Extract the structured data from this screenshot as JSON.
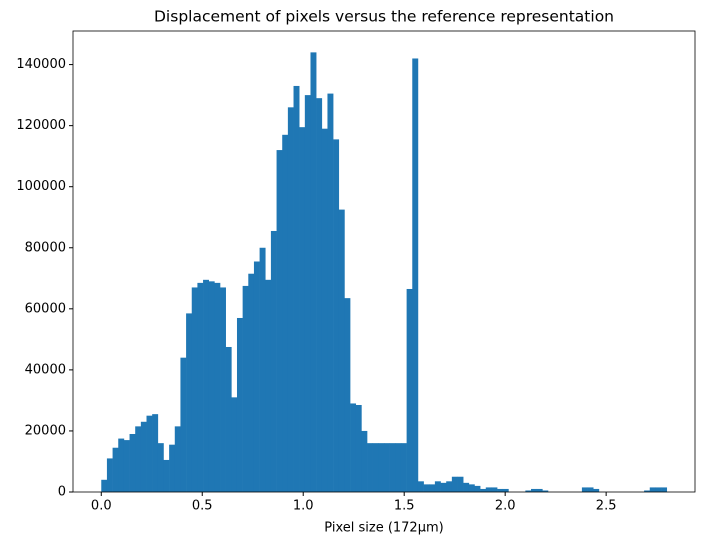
{
  "chart_data": {
    "type": "histogram",
    "title": "Displacement of pixels versus the reference representation",
    "xlabel": "Pixel size (172µm)",
    "color": "#1f77b4",
    "bins": [
      0,
      0.028,
      0.056,
      0.084,
      0.112,
      0.14,
      0.168,
      0.196,
      0.224,
      0.252,
      0.28,
      0.308,
      0.336,
      0.364,
      0.392,
      0.42,
      0.448,
      0.476,
      0.504,
      0.532,
      0.56,
      0.588,
      0.616,
      0.644,
      0.672,
      0.7,
      0.728,
      0.756,
      0.784,
      0.812,
      0.84,
      0.868,
      0.896,
      0.924,
      0.952,
      0.98,
      1.008,
      1.036,
      1.064,
      1.092,
      1.12,
      1.148,
      1.176,
      1.204,
      1.232,
      1.26,
      1.288,
      1.316,
      1.344,
      1.372,
      1.4,
      1.428,
      1.456,
      1.484,
      1.512,
      1.54,
      1.568,
      1.596,
      1.624,
      1.652,
      1.68,
      1.708,
      1.736,
      1.764,
      1.792,
      1.82,
      1.848,
      1.876,
      1.904,
      1.932,
      1.96,
      1.988,
      2.016,
      2.044,
      2.072,
      2.1,
      2.128,
      2.156,
      2.184,
      2.212,
      2.24,
      2.268,
      2.296,
      2.324,
      2.352,
      2.38,
      2.408,
      2.436,
      2.464,
      2.492,
      2.52,
      2.548,
      2.576,
      2.604,
      2.632,
      2.66,
      2.688,
      2.716,
      2.744,
      2.772,
      2.8
    ],
    "values": [
      4000,
      11000,
      14500,
      17500,
      17000,
      19000,
      21500,
      23000,
      25000,
      25500,
      16000,
      10500,
      15500,
      21500,
      44000,
      58500,
      67000,
      68500,
      69500,
      69000,
      68500,
      67000,
      47500,
      31000,
      57000,
      67500,
      71500,
      75500,
      80000,
      69500,
      85500,
      112000,
      117000,
      126000,
      133000,
      119500,
      130000,
      144000,
      129000,
      119000,
      130500,
      115500,
      92500,
      63500,
      29000,
      28500,
      20000,
      16000,
      16000,
      16000,
      16000,
      16000,
      16000,
      16000,
      66500,
      142000,
      3500,
      2500,
      2500,
      3500,
      3000,
      3500,
      5000,
      5000,
      3000,
      2500,
      2000,
      1000,
      1500,
      1500,
      1000,
      1000,
      0,
      0,
      0,
      500,
      1000,
      1000,
      500,
      0,
      0,
      0,
      0,
      0,
      0,
      1500,
      1500,
      1000,
      0,
      0,
      0,
      0,
      0,
      0,
      0,
      0,
      500,
      1500,
      1500,
      1500
    ],
    "xlim": [
      -0.14,
      2.94
    ],
    "xticks": [
      {
        "value": 0,
        "label": "0.0"
      },
      0.5,
      {
        "value": 1,
        "label": "1.0"
      },
      1.5,
      {
        "value": 2,
        "label": "2.0"
      },
      2.5
    ],
    "ylim": [
      0,
      151000
    ],
    "yticks": [
      0,
      20000,
      40000,
      60000,
      80000,
      100000,
      120000,
      140000
    ]
  }
}
